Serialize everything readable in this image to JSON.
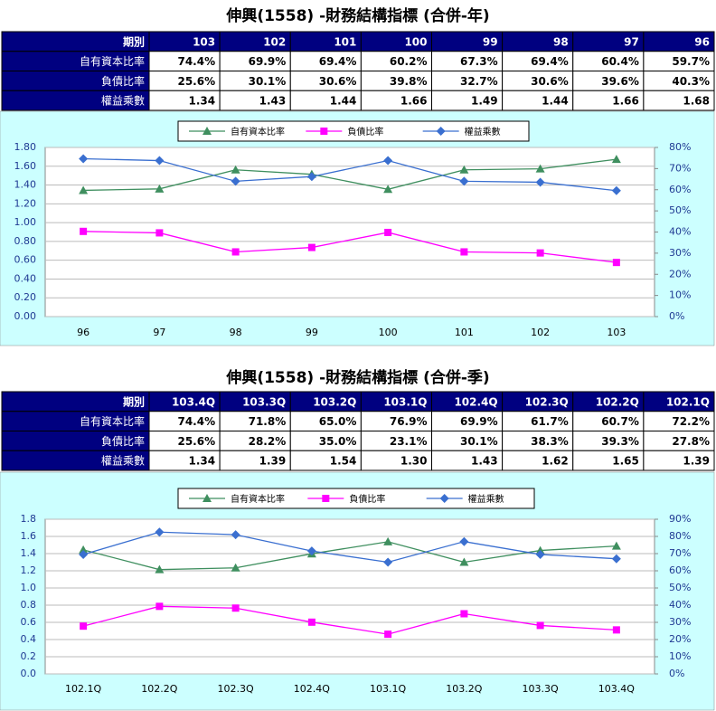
{
  "titles": [
    "伸興(1558) -財務結構指標 (合併-年)",
    "伸興(1558) -財務結構指標 (合併-季)"
  ],
  "tables": [
    {
      "header": [
        "期別",
        "103",
        "102",
        "101",
        "100",
        "99",
        "98",
        "97",
        "96"
      ],
      "rows": [
        [
          "自有資本比率",
          "74.4%",
          "69.9%",
          "69.4%",
          "60.2%",
          "67.3%",
          "69.4%",
          "60.4%",
          "59.7%"
        ],
        [
          "負債比率",
          "25.6%",
          "30.1%",
          "30.6%",
          "39.8%",
          "32.7%",
          "30.6%",
          "39.6%",
          "40.3%"
        ],
        [
          "權益乘數",
          "1.34",
          "1.43",
          "1.44",
          "1.66",
          "1.49",
          "1.44",
          "1.66",
          "1.68"
        ]
      ]
    },
    {
      "header": [
        "期別",
        "103.4Q",
        "103.3Q",
        "103.2Q",
        "103.1Q",
        "102.4Q",
        "102.3Q",
        "102.2Q",
        "102.1Q"
      ],
      "rows": [
        [
          "自有資本比率",
          "74.4%",
          "71.8%",
          "65.0%",
          "76.9%",
          "69.9%",
          "61.7%",
          "60.7%",
          "72.2%"
        ],
        [
          "負債比率",
          "25.6%",
          "28.2%",
          "35.0%",
          "23.1%",
          "30.1%",
          "38.3%",
          "39.3%",
          "27.8%"
        ],
        [
          "權益乘數",
          "1.34",
          "1.39",
          "1.54",
          "1.30",
          "1.43",
          "1.62",
          "1.65",
          "1.39"
        ]
      ]
    }
  ],
  "chart_data": [
    {
      "type": "line",
      "categories": [
        "96",
        "97",
        "98",
        "99",
        "100",
        "101",
        "102",
        "103"
      ],
      "series": [
        {
          "name": "自有資本比率",
          "color": "#3f8f5f",
          "marker": "triangle",
          "axis": "y2",
          "values": [
            59.7,
            60.4,
            69.4,
            67.3,
            60.2,
            69.4,
            69.9,
            74.4
          ]
        },
        {
          "name": "負債比率",
          "color": "#ff00ff",
          "marker": "square",
          "axis": "y2",
          "values": [
            40.3,
            39.6,
            30.6,
            32.7,
            39.8,
            30.6,
            30.1,
            25.6
          ]
        },
        {
          "name": "權益乘數",
          "color": "#3a6fd0",
          "marker": "diamond",
          "values": [
            1.68,
            1.66,
            1.44,
            1.49,
            1.66,
            1.44,
            1.43,
            1.34
          ]
        }
      ],
      "ylim": [
        0,
        1.8
      ],
      "yticks": [
        {
          "value": 0,
          "label": "0.00"
        },
        {
          "value": 0.2,
          "label": "0.20"
        },
        {
          "value": 0.4,
          "label": "0.40"
        },
        {
          "value": 0.6,
          "label": "0.60"
        },
        {
          "value": 0.8,
          "label": "0.80"
        },
        {
          "value": 1.0,
          "label": "1.00"
        },
        {
          "value": 1.2,
          "label": "1.20"
        },
        {
          "value": 1.4,
          "label": "1.40"
        },
        {
          "value": 1.6,
          "label": "1.60"
        },
        {
          "value": 1.8,
          "label": "1.80"
        }
      ],
      "y2lim": [
        0,
        80
      ],
      "y2ticks": [
        {
          "value": 0,
          "label": "0%"
        },
        {
          "value": 10,
          "label": "10%"
        },
        {
          "value": 20,
          "label": "20%"
        },
        {
          "value": 30,
          "label": "30%"
        },
        {
          "value": 40,
          "label": "40%"
        },
        {
          "value": 50,
          "label": "50%"
        },
        {
          "value": 60,
          "label": "60%"
        },
        {
          "value": 70,
          "label": "70%"
        },
        {
          "value": 80,
          "label": "80%"
        }
      ],
      "grid": true,
      "legend": "top"
    },
    {
      "type": "line",
      "categories": [
        "102.1Q",
        "102.2Q",
        "102.3Q",
        "102.4Q",
        "103.1Q",
        "103.2Q",
        "103.3Q",
        "103.4Q"
      ],
      "series": [
        {
          "name": "自有資本比率",
          "color": "#3f8f5f",
          "marker": "triangle",
          "axis": "y2",
          "values": [
            72.2,
            60.7,
            61.7,
            69.9,
            76.9,
            65.0,
            71.8,
            74.4
          ]
        },
        {
          "name": "負債比率",
          "color": "#ff00ff",
          "marker": "square",
          "axis": "y2",
          "values": [
            27.8,
            39.3,
            38.3,
            30.1,
            23.1,
            35.0,
            28.2,
            25.6
          ]
        },
        {
          "name": "權益乘數",
          "color": "#3a6fd0",
          "marker": "diamond",
          "values": [
            1.39,
            1.65,
            1.62,
            1.43,
            1.3,
            1.54,
            1.39,
            1.34
          ]
        }
      ],
      "ylim": [
        0,
        1.8
      ],
      "yticks": [
        {
          "value": 0,
          "label": "0.0"
        },
        0.2,
        0.4,
        0.6,
        0.8,
        {
          "value": 1.0,
          "label": "1.0"
        },
        1.2,
        1.4,
        1.6,
        1.8
      ],
      "y2lim": [
        0,
        90
      ],
      "y2ticks": [
        {
          "value": 0,
          "label": "0%"
        },
        {
          "value": 10,
          "label": "10%"
        },
        {
          "value": 20,
          "label": "20%"
        },
        {
          "value": 30,
          "label": "30%"
        },
        {
          "value": 40,
          "label": "40%"
        },
        {
          "value": 50,
          "label": "50%"
        },
        {
          "value": 60,
          "label": "60%"
        },
        {
          "value": 70,
          "label": "70%"
        },
        {
          "value": 80,
          "label": "80%"
        },
        {
          "value": 90,
          "label": "90%"
        }
      ],
      "grid": true,
      "legend": "top"
    }
  ]
}
